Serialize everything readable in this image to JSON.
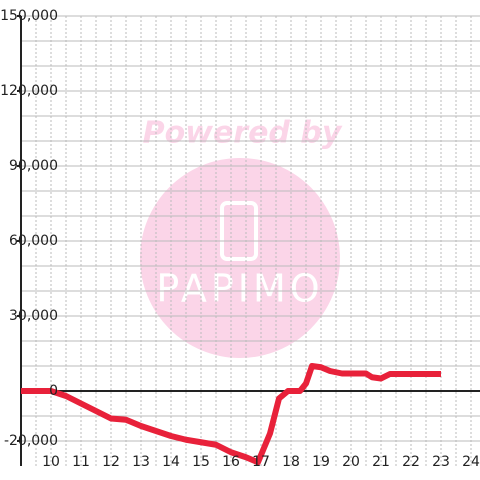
{
  "chart_data": {
    "type": "line",
    "watermark": {
      "line1": "Powered by",
      "line2": "PAPIMO"
    },
    "xlim": [
      9,
      24.3
    ],
    "xticks": [
      10,
      11,
      12,
      13,
      14,
      15,
      16,
      17,
      18,
      19,
      20,
      21,
      22,
      23,
      24
    ],
    "xgrid": [
      9.5,
      10,
      10.5,
      11,
      11.5,
      12,
      12.5,
      13,
      13.5,
      14,
      14.5,
      15,
      15.5,
      16,
      16.5,
      17,
      17.5,
      18,
      18.5,
      19,
      19.5,
      20,
      20.5,
      21,
      21.5,
      22,
      22.5,
      23,
      23.5,
      24
    ],
    "ylim": [
      -30000,
      150000
    ],
    "yticks": [
      {
        "value": 150000,
        "label": "150,000"
      },
      {
        "value": 120000,
        "label": "120,000"
      },
      {
        "value": 90000,
        "label": "90,000"
      },
      {
        "value": 60000,
        "label": "60,000"
      },
      {
        "value": 30000,
        "label": "30,000"
      },
      0,
      {
        "value": -20000,
        "label": "-20,000"
      }
    ],
    "ygrid": [
      -20000,
      -10000,
      10000,
      20000,
      30000,
      40000,
      50000,
      60000,
      70000,
      80000,
      90000,
      100000,
      110000,
      120000,
      130000,
      140000,
      150000
    ],
    "grid": true,
    "series": [
      {
        "color": "#e8213a",
        "x": [
          9,
          10,
          10.5,
          11,
          11.5,
          12,
          12.5,
          13,
          13.5,
          14,
          14.5,
          15,
          15.5,
          16,
          16.5,
          16.9,
          17.3,
          17.6,
          17.9,
          18.3,
          18.5,
          18.7,
          19,
          19.3,
          19.7,
          20,
          20.5,
          20.7,
          21,
          21.3,
          22,
          23
        ],
        "values": [
          0,
          0,
          -2000,
          -5000,
          -8000,
          -11000,
          -11500,
          -14000,
          -16000,
          -18000,
          -19500,
          -20500,
          -21500,
          -24500,
          -26500,
          -28500,
          -17000,
          -3000,
          0,
          0,
          3000,
          10000,
          9500,
          8000,
          7000,
          7000,
          7000,
          5500,
          5000,
          6800,
          6800,
          6800
        ]
      }
    ]
  }
}
